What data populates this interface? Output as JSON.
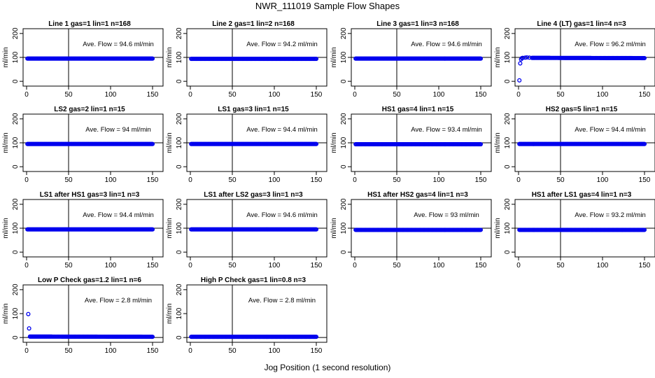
{
  "title": "NWR_111019  Sample Flow Shapes",
  "xlabel": "Jog Position (1 second resolution)",
  "chart_data": [
    {
      "type": "scatter",
      "title": "Line 1 gas=1 lin=1 n=168",
      "ylabel": "ml/min",
      "annotation": "Ave. Flow = 94.6  ml/min",
      "xlim": [
        0,
        150
      ],
      "ylim": [
        -20,
        220
      ],
      "x_ticks": [
        0,
        50,
        100,
        150
      ],
      "y_ticks": [
        0,
        100,
        200
      ],
      "vline": 50,
      "hline": 100,
      "series": [
        {
          "values": [
            [
              1,
              95
            ],
            [
              150,
              95
            ]
          ],
          "mode": "dense"
        }
      ]
    },
    {
      "type": "scatter",
      "title": "Line 2 gas=1 lin=2 n=168",
      "ylabel": "ml/min",
      "annotation": "Ave. Flow = 94.2  ml/min",
      "xlim": [
        0,
        150
      ],
      "ylim": [
        -20,
        220
      ],
      "x_ticks": [
        0,
        50,
        100,
        150
      ],
      "y_ticks": [
        0,
        100,
        200
      ],
      "vline": 50,
      "hline": 100,
      "series": [
        {
          "values": [
            [
              1,
              94
            ],
            [
              150,
              94
            ]
          ],
          "mode": "dense"
        }
      ]
    },
    {
      "type": "scatter",
      "title": "Line 3 gas=1 lin=3 n=168",
      "ylabel": "ml/min",
      "annotation": "Ave. Flow = 94.6  ml/min",
      "xlim": [
        0,
        150
      ],
      "ylim": [
        -20,
        220
      ],
      "x_ticks": [
        0,
        50,
        100,
        150
      ],
      "y_ticks": [
        0,
        100,
        200
      ],
      "vline": 50,
      "hline": 100,
      "series": [
        {
          "values": [
            [
              1,
              95
            ],
            [
              150,
              95
            ]
          ],
          "mode": "dense"
        }
      ]
    },
    {
      "type": "scatter",
      "title": "Line 4 (LT) gas=1 lin=4 n=3",
      "ylabel": "ml/min",
      "annotation": "Ave. Flow = 96.2  ml/min",
      "xlim": [
        0,
        150
      ],
      "ylim": [
        -20,
        220
      ],
      "x_ticks": [
        0,
        50,
        100,
        150
      ],
      "y_ticks": [
        0,
        100,
        200
      ],
      "vline": 50,
      "hline": 100,
      "series": [
        {
          "values": [
            [
              1,
              4
            ],
            [
              2,
              75
            ],
            [
              3,
              92
            ],
            [
              4,
              97
            ],
            [
              5,
              98
            ],
            [
              8,
              99
            ],
            [
              10,
              100
            ],
            [
              13,
              99
            ],
            [
              16,
              98
            ],
            [
              150,
              97
            ]
          ],
          "mode": "dense_from_last"
        }
      ]
    },
    {
      "type": "scatter",
      "title": "LS2 gas=2 lin=1 n=15",
      "ylabel": "ml/min",
      "annotation": "Ave. Flow = 94  ml/min",
      "xlim": [
        0,
        150
      ],
      "ylim": [
        -20,
        220
      ],
      "x_ticks": [
        0,
        50,
        100,
        150
      ],
      "y_ticks": [
        0,
        100,
        200
      ],
      "vline": 50,
      "hline": 100,
      "series": [
        {
          "values": [
            [
              1,
              95
            ],
            [
              150,
              95
            ]
          ],
          "mode": "dense"
        }
      ]
    },
    {
      "type": "scatter",
      "title": "LS1 gas=3 lin=1 n=15",
      "ylabel": "ml/min",
      "annotation": "Ave. Flow = 94.4  ml/min",
      "xlim": [
        0,
        150
      ],
      "ylim": [
        -20,
        220
      ],
      "x_ticks": [
        0,
        50,
        100,
        150
      ],
      "y_ticks": [
        0,
        100,
        200
      ],
      "vline": 50,
      "hline": 100,
      "series": [
        {
          "values": [
            [
              1,
              95
            ],
            [
              150,
              95
            ]
          ],
          "mode": "dense"
        }
      ]
    },
    {
      "type": "scatter",
      "title": "HS1 gas=4 lin=1 n=15",
      "ylabel": "ml/min",
      "annotation": "Ave. Flow = 93.4  ml/min",
      "xlim": [
        0,
        150
      ],
      "ylim": [
        -20,
        220
      ],
      "x_ticks": [
        0,
        50,
        100,
        150
      ],
      "y_ticks": [
        0,
        100,
        200
      ],
      "vline": 50,
      "hline": 100,
      "series": [
        {
          "values": [
            [
              1,
              94
            ],
            [
              150,
              94
            ]
          ],
          "mode": "dense"
        }
      ]
    },
    {
      "type": "scatter",
      "title": "HS2 gas=5 lin=1 n=15",
      "ylabel": "ml/min",
      "annotation": "Ave. Flow = 94.4  ml/min",
      "xlim": [
        0,
        150
      ],
      "ylim": [
        -20,
        220
      ],
      "x_ticks": [
        0,
        50,
        100,
        150
      ],
      "y_ticks": [
        0,
        100,
        200
      ],
      "vline": 50,
      "hline": 100,
      "series": [
        {
          "values": [
            [
              1,
              95
            ],
            [
              150,
              95
            ]
          ],
          "mode": "dense"
        }
      ]
    },
    {
      "type": "scatter",
      "title": "LS1 after HS1 gas=3 lin=1 n=3",
      "ylabel": "ml/min",
      "annotation": "Ave. Flow = 94.4  ml/min",
      "xlim": [
        0,
        150
      ],
      "ylim": [
        -20,
        220
      ],
      "x_ticks": [
        0,
        50,
        100,
        150
      ],
      "y_ticks": [
        0,
        100,
        200
      ],
      "vline": 50,
      "hline": 100,
      "series": [
        {
          "values": [
            [
              1,
              95
            ],
            [
              150,
              95
            ]
          ],
          "mode": "dense"
        }
      ]
    },
    {
      "type": "scatter",
      "title": "LS1 after LS2 gas=3 lin=1 n=3",
      "ylabel": "ml/min",
      "annotation": "Ave. Flow = 94.6  ml/min",
      "xlim": [
        0,
        150
      ],
      "ylim": [
        -20,
        220
      ],
      "x_ticks": [
        0,
        50,
        100,
        150
      ],
      "y_ticks": [
        0,
        100,
        200
      ],
      "vline": 50,
      "hline": 100,
      "series": [
        {
          "values": [
            [
              1,
              95
            ],
            [
              150,
              95
            ]
          ],
          "mode": "dense"
        }
      ]
    },
    {
      "type": "scatter",
      "title": "HS1 after HS2 gas=4 lin=1 n=3",
      "ylabel": "ml/min",
      "annotation": "Ave. Flow = 93  ml/min",
      "xlim": [
        0,
        150
      ],
      "ylim": [
        -20,
        220
      ],
      "x_ticks": [
        0,
        50,
        100,
        150
      ],
      "y_ticks": [
        0,
        100,
        200
      ],
      "vline": 50,
      "hline": 100,
      "series": [
        {
          "values": [
            [
              1,
              93
            ],
            [
              150,
              93
            ]
          ],
          "mode": "dense"
        }
      ]
    },
    {
      "type": "scatter",
      "title": "HS1 after LS1 gas=4 lin=1 n=3",
      "ylabel": "ml/min",
      "annotation": "Ave. Flow = 93.2  ml/min",
      "xlim": [
        0,
        150
      ],
      "ylim": [
        -20,
        220
      ],
      "x_ticks": [
        0,
        50,
        100,
        150
      ],
      "y_ticks": [
        0,
        100,
        200
      ],
      "vline": 50,
      "hline": 100,
      "series": [
        {
          "values": [
            [
              1,
              93
            ],
            [
              150,
              93
            ]
          ],
          "mode": "dense"
        }
      ]
    },
    {
      "type": "scatter",
      "title": "Low P Check gas=1.2 lin=1 n=6",
      "ylabel": "ml/min",
      "annotation": "Ave. Flow = 2.8  ml/min",
      "xlim": [
        0,
        150
      ],
      "ylim": [
        -20,
        220
      ],
      "x_ticks": [
        0,
        50,
        100,
        150
      ],
      "y_ticks": [
        0,
        100,
        200
      ],
      "vline": 50,
      "hline": 0,
      "series": [
        {
          "values": [
            [
              2,
              98
            ],
            [
              3,
              38
            ],
            [
              4,
              4
            ],
            [
              150,
              3
            ]
          ],
          "mode": "dense_from_last"
        }
      ]
    },
    {
      "type": "scatter",
      "title": "High P Check gas=1 lin=0.8 n=3",
      "ylabel": "ml/min",
      "annotation": "Ave. Flow = 2.8  ml/min",
      "xlim": [
        0,
        150
      ],
      "ylim": [
        -20,
        220
      ],
      "x_ticks": [
        0,
        50,
        100,
        150
      ],
      "y_ticks": [
        0,
        100,
        200
      ],
      "vline": 50,
      "hline": 0,
      "series": [
        {
          "values": [
            [
              1,
              3
            ],
            [
              150,
              3
            ]
          ],
          "mode": "dense"
        }
      ]
    }
  ],
  "colors": {
    "points": "#0000ee",
    "axes": "#000000",
    "background": "#ffffff"
  }
}
